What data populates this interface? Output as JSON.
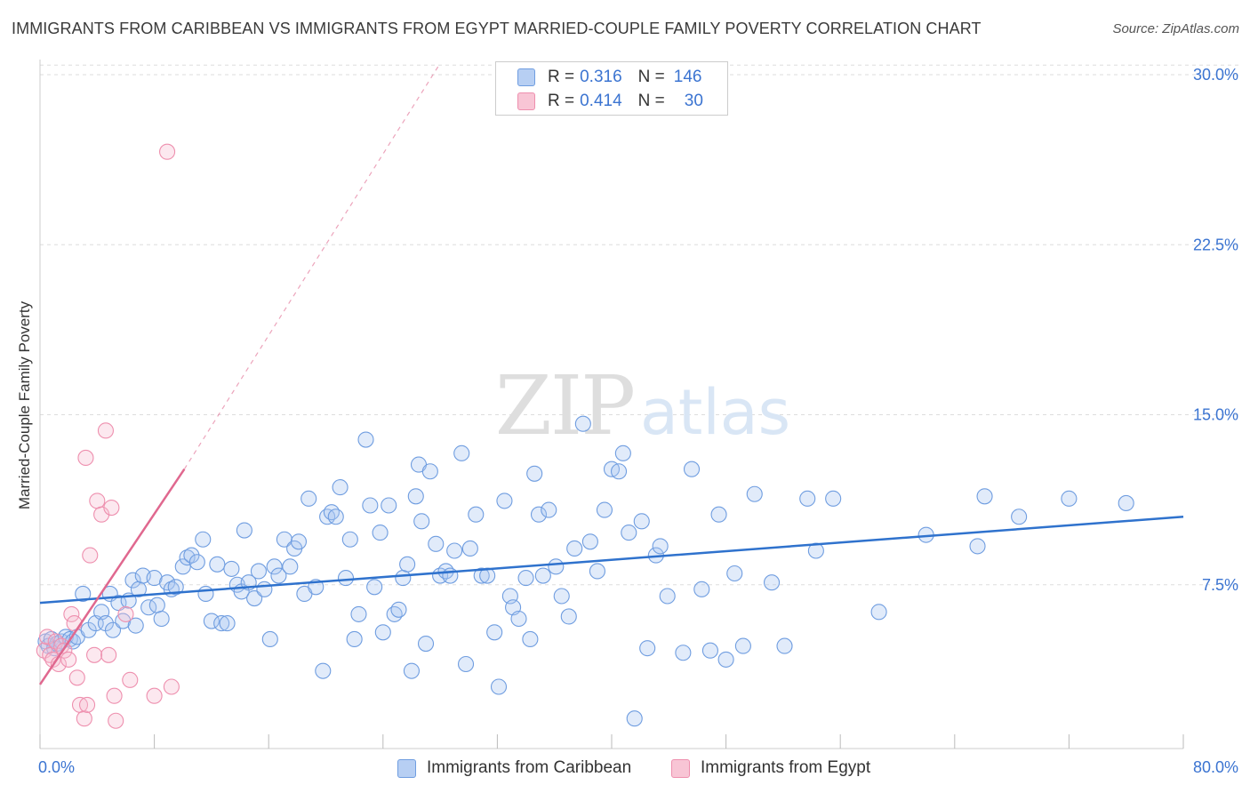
{
  "title": "IMMIGRANTS FROM CARIBBEAN VS IMMIGRANTS FROM EGYPT MARRIED-COUPLE FAMILY POVERTY CORRELATION CHART",
  "source": "Source: ZipAtlas.com",
  "watermark": {
    "zip": "ZIP",
    "atlas": "atlas"
  },
  "legend_top": [
    {
      "r_label": "R =",
      "r_value": "0.316",
      "n_label": "N =",
      "n_value": "146",
      "fill": "#b7cff3",
      "stroke": "#6f9de0"
    },
    {
      "r_label": "R =",
      "r_value": "0.414",
      "n_label": "N =",
      "n_value": "30",
      "fill": "#f8c5d5",
      "stroke": "#ee8fae"
    }
  ],
  "bottom_legend": [
    {
      "label": "Immigrants from Caribbean",
      "fill": "#b7cff3",
      "stroke": "#6f9de0"
    },
    {
      "label": "Immigrants from Egypt",
      "fill": "#f8c5d5",
      "stroke": "#ee8fae"
    }
  ],
  "colors": {
    "blue_line": "#2f72cd",
    "pink_line": "#e0688f",
    "tick_label": "#3b74d1",
    "grid": "#dddddd"
  },
  "chart_data": {
    "type": "scatter",
    "title": "IMMIGRANTS FROM CARIBBEAN VS IMMIGRANTS FROM EGYPT MARRIED-COUPLE FAMILY POVERTY CORRELATION CHART",
    "xlabel": "",
    "ylabel": "Married-Couple Family Poverty",
    "xlim": [
      0,
      80
    ],
    "ylim": [
      0,
      30.5
    ],
    "x_tick_labels": [
      {
        "value": 0,
        "label": "0.0%"
      },
      {
        "value": 80,
        "label": "80.0%"
      }
    ],
    "x_minor_ticks": [
      0,
      8,
      16,
      24,
      32,
      40,
      48,
      56,
      64,
      72,
      80
    ],
    "y_ticks": [
      {
        "value": 7.5,
        "label": "7.5%"
      },
      {
        "value": 15,
        "label": "15.0%"
      },
      {
        "value": 22.5,
        "label": "22.5%"
      },
      {
        "value": 30,
        "label": "30.0%"
      }
    ],
    "series": [
      {
        "name": "Immigrants from Caribbean",
        "color": "#6f9de0",
        "r": 0.316,
        "n": 146,
        "trend": {
          "x0": 0,
          "y0": 6.7,
          "x1": 80,
          "y1": 10.5
        },
        "points": [
          [
            0.4,
            5.0
          ],
          [
            0.6,
            4.8
          ],
          [
            0.8,
            5.1
          ],
          [
            1.0,
            4.7
          ],
          [
            1.2,
            4.9
          ],
          [
            1.5,
            5.0
          ],
          [
            1.8,
            5.2
          ],
          [
            2.1,
            5.1
          ],
          [
            2.3,
            5.0
          ],
          [
            2.6,
            5.2
          ],
          [
            3.0,
            7.1
          ],
          [
            3.4,
            5.5
          ],
          [
            3.9,
            5.8
          ],
          [
            4.3,
            6.3
          ],
          [
            4.6,
            5.8
          ],
          [
            4.9,
            7.1
          ],
          [
            5.1,
            5.5
          ],
          [
            5.5,
            6.7
          ],
          [
            5.8,
            5.9
          ],
          [
            6.2,
            6.8
          ],
          [
            6.5,
            7.7
          ],
          [
            6.7,
            5.7
          ],
          [
            6.9,
            7.3
          ],
          [
            7.2,
            7.9
          ],
          [
            7.6,
            6.5
          ],
          [
            8.0,
            7.8
          ],
          [
            8.2,
            6.6
          ],
          [
            8.5,
            6.0
          ],
          [
            8.9,
            7.6
          ],
          [
            9.2,
            7.3
          ],
          [
            9.5,
            7.4
          ],
          [
            10.0,
            8.3
          ],
          [
            10.3,
            8.7
          ],
          [
            10.6,
            8.8
          ],
          [
            11.0,
            8.5
          ],
          [
            11.4,
            9.5
          ],
          [
            11.6,
            7.1
          ],
          [
            12.0,
            5.9
          ],
          [
            12.4,
            8.4
          ],
          [
            12.7,
            5.8
          ],
          [
            13.1,
            5.8
          ],
          [
            13.4,
            8.2
          ],
          [
            13.8,
            7.5
          ],
          [
            14.1,
            7.2
          ],
          [
            14.3,
            9.9
          ],
          [
            14.6,
            7.6
          ],
          [
            15.0,
            6.9
          ],
          [
            15.3,
            8.1
          ],
          [
            15.7,
            7.3
          ],
          [
            16.1,
            5.1
          ],
          [
            16.4,
            8.3
          ],
          [
            16.7,
            7.9
          ],
          [
            17.1,
            9.5
          ],
          [
            17.5,
            8.3
          ],
          [
            17.8,
            9.1
          ],
          [
            18.1,
            9.4
          ],
          [
            18.5,
            7.1
          ],
          [
            18.8,
            11.3
          ],
          [
            19.3,
            7.4
          ],
          [
            19.8,
            3.7
          ],
          [
            20.1,
            10.5
          ],
          [
            20.4,
            10.7
          ],
          [
            20.7,
            10.5
          ],
          [
            21.0,
            11.8
          ],
          [
            21.4,
            7.8
          ],
          [
            21.7,
            9.5
          ],
          [
            22.0,
            5.1
          ],
          [
            22.3,
            6.2
          ],
          [
            22.8,
            13.9
          ],
          [
            23.1,
            11.0
          ],
          [
            23.4,
            7.4
          ],
          [
            23.8,
            9.8
          ],
          [
            24.0,
            5.4
          ],
          [
            24.4,
            11.0
          ],
          [
            24.8,
            6.2
          ],
          [
            25.1,
            6.4
          ],
          [
            25.4,
            7.8
          ],
          [
            25.7,
            8.4
          ],
          [
            26.0,
            3.7
          ],
          [
            26.3,
            11.4
          ],
          [
            26.5,
            12.8
          ],
          [
            26.7,
            10.3
          ],
          [
            27.0,
            4.9
          ],
          [
            27.3,
            12.5
          ],
          [
            27.7,
            9.3
          ],
          [
            28.0,
            7.9
          ],
          [
            28.4,
            8.1
          ],
          [
            28.7,
            7.9
          ],
          [
            29.0,
            9.0
          ],
          [
            29.5,
            13.3
          ],
          [
            29.8,
            4.0
          ],
          [
            30.1,
            9.1
          ],
          [
            30.5,
            10.6
          ],
          [
            30.9,
            7.9
          ],
          [
            31.3,
            7.9
          ],
          [
            31.8,
            5.4
          ],
          [
            32.1,
            3.0
          ],
          [
            32.5,
            11.2
          ],
          [
            32.9,
            7.0
          ],
          [
            33.1,
            6.5
          ],
          [
            33.5,
            6.0
          ],
          [
            34.0,
            7.8
          ],
          [
            34.3,
            5.1
          ],
          [
            34.6,
            12.4
          ],
          [
            34.9,
            10.6
          ],
          [
            35.2,
            7.9
          ],
          [
            35.6,
            10.8
          ],
          [
            36.1,
            8.3
          ],
          [
            36.5,
            7.0
          ],
          [
            37.0,
            6.1
          ],
          [
            37.4,
            9.1
          ],
          [
            38.0,
            14.6
          ],
          [
            38.5,
            9.4
          ],
          [
            39.0,
            8.1
          ],
          [
            39.5,
            10.8
          ],
          [
            40.0,
            12.6
          ],
          [
            40.5,
            12.5
          ],
          [
            40.8,
            13.3
          ],
          [
            41.2,
            9.8
          ],
          [
            41.6,
            1.6
          ],
          [
            42.1,
            10.3
          ],
          [
            42.5,
            4.7
          ],
          [
            43.1,
            8.8
          ],
          [
            43.4,
            9.2
          ],
          [
            43.9,
            7.0
          ],
          [
            45.0,
            4.5
          ],
          [
            45.6,
            12.6
          ],
          [
            46.3,
            7.3
          ],
          [
            46.9,
            4.6
          ],
          [
            47.5,
            10.6
          ],
          [
            48.0,
            4.2
          ],
          [
            48.6,
            8.0
          ],
          [
            49.2,
            4.8
          ],
          [
            50.0,
            11.5
          ],
          [
            51.2,
            7.6
          ],
          [
            52.1,
            4.8
          ],
          [
            53.7,
            11.3
          ],
          [
            54.3,
            9.0
          ],
          [
            55.5,
            11.3
          ],
          [
            58.7,
            6.3
          ],
          [
            62.0,
            9.7
          ],
          [
            65.6,
            9.2
          ],
          [
            66.1,
            11.4
          ],
          [
            68.5,
            10.5
          ],
          [
            72.0,
            11.3
          ],
          [
            76.0,
            11.1
          ]
        ]
      },
      {
        "name": "Immigrants from Egypt",
        "color": "#ee8fae",
        "r": 0.414,
        "n": 30,
        "trend": {
          "x0": 0,
          "y0": 3.1,
          "x1": 10.1,
          "y1": 12.6,
          "dash_x1": 28.0,
          "dash_y1": 30.5
        },
        "points": [
          [
            0.3,
            4.6
          ],
          [
            0.5,
            5.2
          ],
          [
            0.7,
            4.4
          ],
          [
            0.9,
            4.2
          ],
          [
            1.1,
            5.0
          ],
          [
            1.3,
            4.0
          ],
          [
            1.5,
            4.8
          ],
          [
            1.7,
            4.6
          ],
          [
            2.0,
            4.2
          ],
          [
            2.2,
            6.2
          ],
          [
            2.4,
            5.8
          ],
          [
            2.6,
            3.4
          ],
          [
            2.8,
            2.2
          ],
          [
            3.1,
            1.6
          ],
          [
            3.2,
            13.1
          ],
          [
            3.3,
            2.2
          ],
          [
            3.5,
            8.8
          ],
          [
            3.8,
            4.4
          ],
          [
            4.0,
            11.2
          ],
          [
            4.3,
            10.6
          ],
          [
            4.6,
            14.3
          ],
          [
            4.8,
            4.4
          ],
          [
            5.0,
            10.9
          ],
          [
            5.2,
            2.6
          ],
          [
            5.3,
            1.5
          ],
          [
            6.0,
            6.2
          ],
          [
            6.3,
            3.3
          ],
          [
            8.0,
            2.6
          ],
          [
            8.9,
            26.6
          ],
          [
            9.2,
            3.0
          ]
        ]
      }
    ]
  }
}
